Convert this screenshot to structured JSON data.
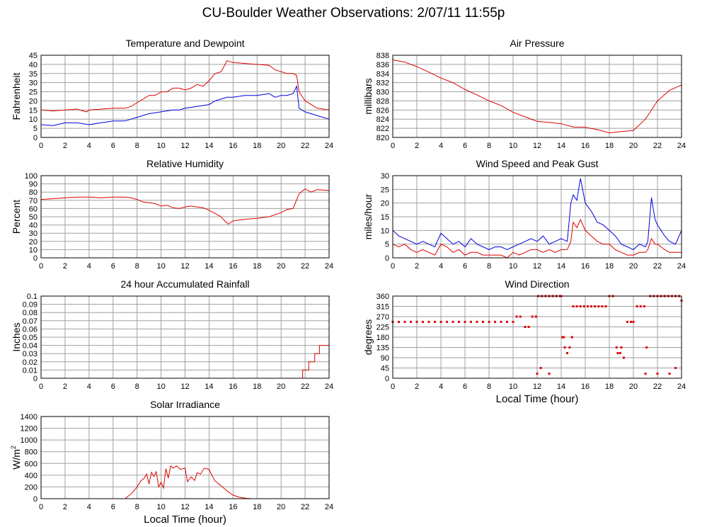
{
  "page": {
    "title": "CU-Boulder Weather Observations: 2/07/11 11:55p"
  },
  "chart_data": [
    {
      "type": "line",
      "title": "Temperature and Dewpoint",
      "xlabel": "",
      "ylabel": "Fahrenheit",
      "xlim": [
        0,
        24
      ],
      "ylim": [
        0,
        45
      ],
      "xticks": [
        0,
        2,
        4,
        6,
        8,
        10,
        12,
        14,
        16,
        18,
        20,
        22,
        24
      ],
      "yticks": [
        0,
        5,
        10,
        15,
        20,
        25,
        30,
        35,
        40,
        45
      ],
      "grid": true,
      "series": [
        {
          "color": "#e00000",
          "x": [
            0,
            1,
            2,
            3,
            3.8,
            4,
            5,
            6,
            7,
            7.5,
            8,
            8.5,
            9,
            9.5,
            10,
            10.5,
            11,
            11.5,
            12,
            12.5,
            13,
            13.5,
            14,
            14.5,
            15,
            15.5,
            16,
            17,
            18,
            19,
            19.5,
            20,
            20.5,
            21,
            21.3,
            21.5,
            22,
            22.5,
            23,
            24
          ],
          "y": [
            15,
            14.5,
            15,
            15.5,
            14,
            15,
            15.5,
            16,
            16,
            17,
            19,
            21,
            23,
            23,
            25,
            25,
            27,
            27,
            26,
            27,
            29,
            28,
            31,
            35,
            36,
            42,
            41,
            40.5,
            40,
            39.5,
            37,
            36,
            35,
            35,
            34,
            25,
            20,
            18,
            16,
            15
          ]
        },
        {
          "color": "#0000e0",
          "x": [
            0,
            1,
            2,
            3,
            4,
            5,
            6,
            7,
            7.5,
            8,
            9,
            10,
            11,
            11.5,
            12,
            13,
            14,
            14.5,
            15,
            15.5,
            16,
            17,
            18,
            19,
            19.5,
            20,
            20.5,
            21,
            21.3,
            21.5,
            22,
            22.5,
            23,
            24
          ],
          "y": [
            7,
            6.5,
            8,
            8,
            7,
            8,
            9,
            9,
            10,
            11,
            13,
            14,
            15,
            15,
            16,
            17,
            18,
            20,
            21,
            22,
            22,
            23,
            23,
            24,
            22,
            23,
            23,
            24,
            28,
            16,
            14,
            13,
            12,
            10
          ]
        }
      ]
    },
    {
      "type": "line",
      "title": "Air Pressure",
      "xlabel": "",
      "ylabel": "millibars",
      "xlim": [
        0,
        24
      ],
      "ylim": [
        820,
        838
      ],
      "xticks": [
        0,
        2,
        4,
        6,
        8,
        10,
        12,
        14,
        16,
        18,
        20,
        22,
        24
      ],
      "yticks": [
        820,
        822,
        824,
        826,
        828,
        830,
        832,
        834,
        836,
        838
      ],
      "grid": true,
      "series": [
        {
          "color": "#e00000",
          "x": [
            0,
            1,
            2,
            3,
            4,
            5,
            6,
            7,
            8,
            9,
            10,
            11,
            12,
            13,
            14,
            15,
            16,
            17,
            18,
            19,
            20,
            21,
            22,
            23,
            24
          ],
          "y": [
            837,
            836.5,
            835.5,
            834.3,
            833,
            832,
            830.5,
            829.3,
            828,
            827,
            825.5,
            824.5,
            823.5,
            823.3,
            823,
            822.3,
            822.2,
            821.7,
            821,
            821.3,
            821.5,
            824,
            828,
            830.3,
            831.5
          ]
        }
      ]
    },
    {
      "type": "line",
      "title": "Relative Humidity",
      "xlabel": "",
      "ylabel": "Percent",
      "xlim": [
        0,
        24
      ],
      "ylim": [
        0,
        100
      ],
      "xticks": [
        0,
        2,
        4,
        6,
        8,
        10,
        12,
        14,
        16,
        18,
        20,
        22,
        24
      ],
      "yticks": [
        0,
        10,
        20,
        30,
        40,
        50,
        60,
        70,
        80,
        90,
        100
      ],
      "grid": true,
      "series": [
        {
          "color": "#e00000",
          "x": [
            0,
            1,
            2,
            3,
            4,
            5,
            6,
            7,
            7.5,
            8,
            8.5,
            9,
            9.5,
            10,
            10.5,
            11,
            11.5,
            12,
            12.5,
            13,
            13.5,
            14,
            14.5,
            15,
            15.3,
            15.6,
            16,
            16.5,
            17,
            18,
            19,
            20,
            20.5,
            21,
            21.5,
            22,
            22.5,
            23,
            24
          ],
          "y": [
            71,
            72,
            73,
            74,
            74,
            73,
            74,
            74,
            73,
            71,
            68,
            67,
            66,
            63,
            64,
            61,
            60,
            62,
            63,
            62,
            61,
            58,
            54,
            50,
            45,
            41,
            45,
            46,
            47,
            48,
            50,
            55,
            59,
            60,
            78,
            84,
            80,
            83,
            82
          ]
        }
      ]
    },
    {
      "type": "line",
      "title": "Wind Speed and Peak Gust",
      "xlabel": "",
      "ylabel": "miles/hour",
      "xlim": [
        0,
        24
      ],
      "ylim": [
        0,
        30
      ],
      "xticks": [
        0,
        2,
        4,
        6,
        8,
        10,
        12,
        14,
        16,
        18,
        20,
        22,
        24
      ],
      "yticks": [
        0,
        5,
        10,
        15,
        20,
        25,
        30
      ],
      "grid": true,
      "series": [
        {
          "color": "#0000e0",
          "x": [
            0,
            0.5,
            1,
            1.5,
            2,
            2.5,
            3,
            3.5,
            4,
            4.5,
            5,
            5.5,
            6,
            6.5,
            7,
            7.5,
            8,
            8.5,
            9,
            9.5,
            10,
            10.5,
            11,
            11.5,
            12,
            12.5,
            13,
            13.5,
            14,
            14.5,
            14.8,
            15,
            15.3,
            15.6,
            16,
            16.5,
            17,
            17.5,
            18,
            18.5,
            19,
            19.5,
            20,
            20.5,
            21,
            21.2,
            21.5,
            21.8,
            22,
            22.3,
            22.6,
            23,
            23.5,
            24
          ],
          "y": [
            10,
            8,
            7,
            6,
            5,
            6,
            5,
            4,
            9,
            7,
            5,
            6,
            4,
            7,
            5,
            4,
            3,
            4,
            4,
            3,
            4,
            5,
            6,
            7,
            6,
            8,
            5,
            6,
            7,
            6,
            20,
            23,
            21,
            29,
            20,
            17,
            13,
            12,
            10,
            8,
            5,
            4,
            3,
            5,
            4,
            6,
            22,
            14,
            12,
            10,
            8,
            6,
            5,
            10
          ]
        },
        {
          "color": "#e00000",
          "x": [
            0,
            0.5,
            1,
            1.5,
            2,
            2.5,
            3,
            3.5,
            4,
            4.5,
            5,
            5.5,
            6,
            6.5,
            7,
            7.5,
            8,
            8.5,
            9,
            9.5,
            10,
            10.5,
            11,
            11.5,
            12,
            12.5,
            13,
            13.5,
            14,
            14.5,
            14.8,
            15,
            15.3,
            15.6,
            16,
            16.5,
            17,
            17.5,
            18,
            18.5,
            19,
            19.5,
            20,
            20.5,
            21,
            21.2,
            21.5,
            21.8,
            22,
            22.3,
            22.6,
            23,
            23.5,
            24
          ],
          "y": [
            5,
            4,
            5,
            3,
            2,
            3,
            2,
            1,
            5,
            4,
            2,
            3,
            1,
            2,
            2,
            1,
            1,
            1,
            1,
            0,
            2,
            1,
            2,
            3,
            3,
            2,
            3,
            2,
            3,
            3,
            6,
            13,
            11,
            14,
            10,
            8,
            6,
            5,
            5,
            3,
            2,
            1,
            1,
            2,
            2,
            3,
            7,
            5,
            5,
            4,
            3,
            2,
            2,
            2
          ]
        }
      ]
    },
    {
      "type": "line",
      "title": "24 hour Accumulated Rainfall",
      "xlabel": "",
      "ylabel": "Inches",
      "xlim": [
        0,
        24
      ],
      "ylim": [
        0,
        0.1
      ],
      "xticks": [
        0,
        2,
        4,
        6,
        8,
        10,
        12,
        14,
        16,
        18,
        20,
        22,
        24
      ],
      "yticks": [
        0,
        0.01,
        0.02,
        0.03,
        0.04,
        0.05,
        0.06,
        0.07,
        0.08,
        0.09,
        0.1
      ],
      "grid": true,
      "series": [
        {
          "color": "#e00000",
          "x": [
            0,
            21.8,
            21.8,
            22.3,
            22.3,
            22.8,
            22.8,
            23.2,
            23.2,
            23.6,
            23.6,
            24
          ],
          "y": [
            0,
            0,
            0.01,
            0.01,
            0.02,
            0.02,
            0.03,
            0.03,
            0.04,
            0.04,
            0.04,
            0.04
          ]
        }
      ]
    },
    {
      "type": "scatter",
      "title": "Wind Direction",
      "xlabel": "Local Time (hour)",
      "ylabel": "degrees",
      "xlim": [
        0,
        24
      ],
      "ylim": [
        0,
        360
      ],
      "xticks": [
        0,
        2,
        4,
        6,
        8,
        10,
        12,
        14,
        16,
        18,
        20,
        22,
        24
      ],
      "yticks": [
        0,
        45,
        90,
        135,
        180,
        225,
        270,
        315,
        360
      ],
      "grid": true,
      "series": [
        {
          "color": "#e00000",
          "x": [
            0,
            0.5,
            1,
            1.5,
            2,
            2.5,
            3,
            3.5,
            4,
            4.5,
            5,
            5.5,
            6,
            6.5,
            7,
            7.5,
            8,
            8.5,
            9,
            9.5,
            10,
            10.3,
            10.6,
            11,
            11.3,
            11.6,
            11.9,
            12.1,
            12.4,
            12.7,
            13,
            13.3,
            13.6,
            13.9,
            14.1,
            14.3,
            14.5,
            14.7,
            15,
            15.3,
            15.6,
            15.9,
            16.2,
            16.5,
            16.8,
            17.1,
            17.4,
            17.7,
            18,
            18.3,
            18.6,
            18.9,
            19.2,
            19.5,
            19.8,
            20,
            20.3,
            20.6,
            20.9,
            21.1,
            21.4,
            21.7,
            22,
            22.3,
            22.6,
            22.9,
            23.2,
            23.5,
            23.8,
            24,
            12,
            12.3,
            13,
            14,
            14.2,
            14.5,
            14.9,
            18.7,
            19,
            21,
            22,
            23,
            23.5
          ],
          "y": [
            247,
            247,
            247,
            247,
            247,
            247,
            247,
            247,
            247,
            247,
            247,
            247,
            247,
            247,
            247,
            247,
            247,
            247,
            247,
            247,
            247,
            270,
            270,
            225,
            225,
            270,
            270,
            360,
            360,
            360,
            360,
            360,
            360,
            360,
            180,
            135,
            110,
            135,
            315,
            315,
            315,
            315,
            315,
            315,
            315,
            315,
            315,
            315,
            360,
            360,
            135,
            110,
            90,
            247,
            247,
            247,
            315,
            315,
            315,
            135,
            360,
            360,
            360,
            360,
            360,
            360,
            360,
            360,
            360,
            340,
            20,
            45,
            20,
            360,
            180,
            110,
            180,
            110,
            135,
            20,
            20,
            20,
            45
          ]
        }
      ]
    },
    {
      "type": "line",
      "title": "Solar Irradiance",
      "xlabel": "Local Time (hour)",
      "ylabel": "W/m2",
      "xlim": [
        0,
        24
      ],
      "ylim": [
        0,
        1400
      ],
      "xticks": [
        0,
        2,
        4,
        6,
        8,
        10,
        12,
        14,
        16,
        18,
        20,
        22,
        24
      ],
      "yticks": [
        0,
        200,
        400,
        600,
        800,
        1000,
        1200,
        1400
      ],
      "grid": true,
      "series": [
        {
          "color": "#e00000",
          "x": [
            0,
            7,
            7.3,
            7.6,
            8,
            8.3,
            8.6,
            8.8,
            9,
            9.2,
            9.4,
            9.6,
            9.8,
            10,
            10.2,
            10.4,
            10.6,
            10.8,
            11,
            11.3,
            11.6,
            12,
            12.2,
            12.5,
            12.8,
            13,
            13.3,
            13.6,
            14,
            14.2,
            14.5,
            15,
            15.5,
            16,
            16.5,
            17,
            17.5,
            18,
            24
          ],
          "y": [
            0,
            0,
            50,
            100,
            200,
            300,
            350,
            420,
            250,
            450,
            380,
            460,
            200,
            280,
            180,
            510,
            350,
            560,
            520,
            560,
            500,
            520,
            290,
            370,
            310,
            440,
            420,
            520,
            500,
            410,
            300,
            220,
            130,
            60,
            25,
            10,
            0,
            0,
            0
          ]
        }
      ]
    }
  ]
}
